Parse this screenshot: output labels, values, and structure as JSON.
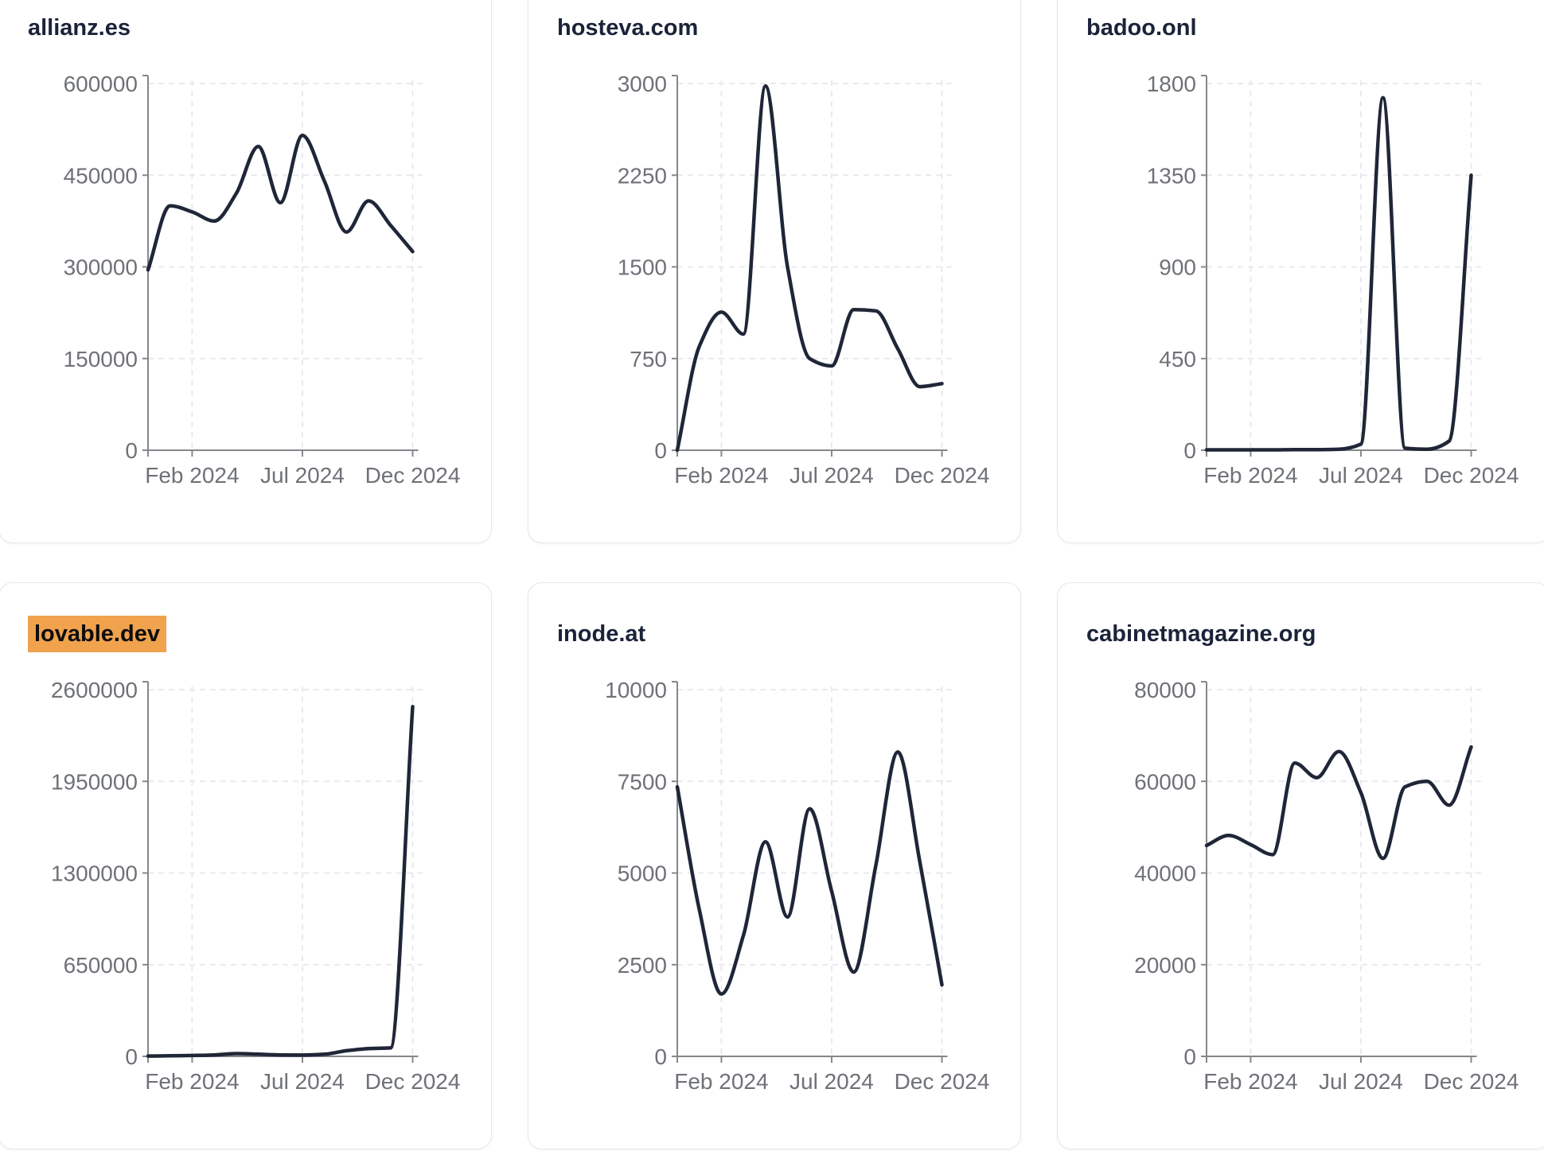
{
  "style": {
    "page_bg": "#ffffff",
    "card_bg": "#ffffff",
    "card_border": "#e6e8ee",
    "title_color": "#1a2338",
    "highlight_bg": "#f0a24d",
    "highlight_text": "#0d0d0d",
    "line_color": "#1f2637",
    "axis_color": "#85878c",
    "tick_label_color": "#6e7177",
    "grid_color": "#e7e8ec"
  },
  "chart_data": [
    {
      "type": "line",
      "title": "allianz.es",
      "highlighted": false,
      "ylim": [
        0,
        600000
      ],
      "y_ticks": [
        0,
        150000,
        300000,
        450000,
        600000
      ],
      "x_tick_labels": [
        "Feb 2024",
        "Jul 2024",
        "Dec 2024"
      ],
      "x_tick_point_indices": [
        2,
        7,
        12
      ],
      "grid": true,
      "values": [
        295000,
        400000,
        390000,
        375000,
        420000,
        497000,
        405000,
        515000,
        440000,
        357000,
        408000,
        368000,
        325000
      ]
    },
    {
      "type": "line",
      "title": "hosteva.com",
      "highlighted": false,
      "ylim": [
        0,
        3000
      ],
      "y_ticks": [
        0,
        750,
        1500,
        2250,
        3000
      ],
      "x_tick_labels": [
        "Feb 2024",
        "Jul 2024",
        "Dec 2024"
      ],
      "x_tick_point_indices": [
        2,
        7,
        12
      ],
      "grid": true,
      "values": [
        0,
        850,
        1130,
        950,
        2980,
        1500,
        750,
        690,
        1150,
        1140,
        830,
        520,
        545
      ]
    },
    {
      "type": "line",
      "title": "badoo.onl",
      "highlighted": false,
      "ylim": [
        0,
        1800
      ],
      "y_ticks": [
        0,
        450,
        900,
        1350,
        1800
      ],
      "x_tick_labels": [
        "Feb 2024",
        "Jul 2024",
        "Dec 2024"
      ],
      "x_tick_point_indices": [
        2,
        7,
        12
      ],
      "grid": true,
      "values": [
        2,
        2,
        2,
        2,
        3,
        3,
        5,
        30,
        1730,
        10,
        5,
        45,
        1350
      ]
    },
    {
      "type": "line",
      "title": "lovable.dev",
      "highlighted": true,
      "ylim": [
        0,
        2600000
      ],
      "y_ticks": [
        0,
        650000,
        1300000,
        1950000,
        2600000
      ],
      "x_tick_labels": [
        "Feb 2024",
        "Jul 2024",
        "Dec 2024"
      ],
      "x_tick_point_indices": [
        2,
        7,
        12
      ],
      "grid": true,
      "values": [
        2000,
        4000,
        6000,
        10000,
        20000,
        15000,
        10000,
        9000,
        15000,
        40000,
        55000,
        60000,
        2480000
      ]
    },
    {
      "type": "line",
      "title": "inode.at",
      "highlighted": false,
      "ylim": [
        0,
        10000
      ],
      "y_ticks": [
        0,
        2500,
        5000,
        7500,
        10000
      ],
      "x_tick_labels": [
        "Feb 2024",
        "Jul 2024",
        "Dec 2024"
      ],
      "x_tick_point_indices": [
        2,
        7,
        12
      ],
      "grid": true,
      "values": [
        7350,
        4000,
        1700,
        3300,
        5850,
        3800,
        6750,
        4500,
        2300,
        5200,
        8300,
        5300,
        1950
      ]
    },
    {
      "type": "line",
      "title": "cabinetmagazine.org",
      "highlighted": false,
      "ylim": [
        0,
        80000
      ],
      "y_ticks": [
        0,
        20000,
        40000,
        60000,
        80000
      ],
      "x_tick_labels": [
        "Feb 2024",
        "Jul 2024",
        "Dec 2024"
      ],
      "x_tick_point_indices": [
        2,
        7,
        12
      ],
      "grid": true,
      "values": [
        46000,
        48200,
        46200,
        44000,
        64000,
        60800,
        66500,
        57500,
        43200,
        58800,
        60000,
        54800,
        67500
      ]
    }
  ]
}
